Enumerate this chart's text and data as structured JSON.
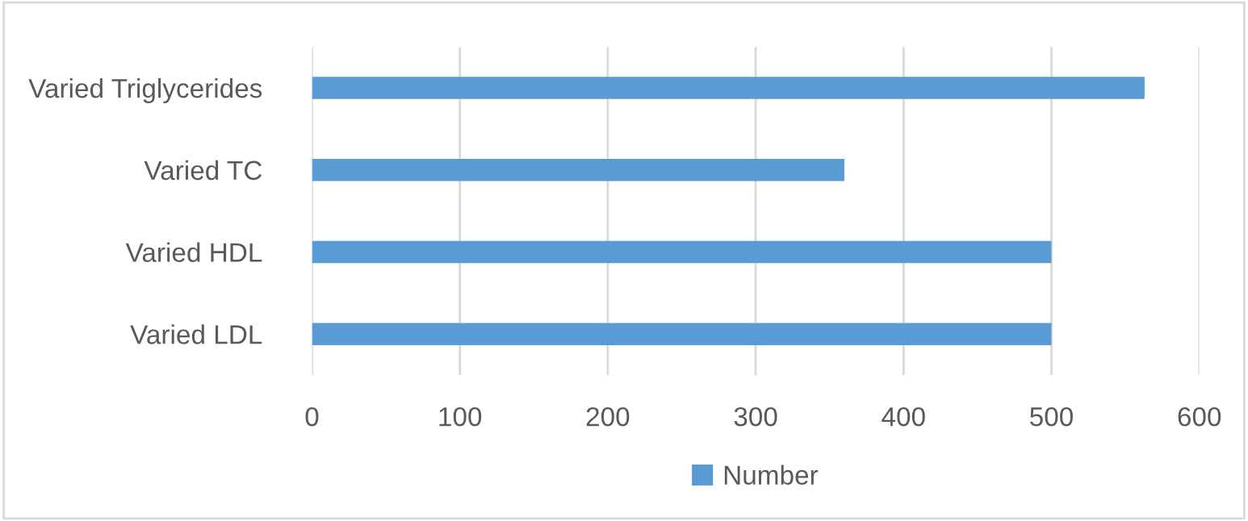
{
  "chart_data": {
    "type": "bar",
    "orientation": "horizontal",
    "categories": [
      "Varied Triglycerides",
      "Varied TC",
      "Varied HDL",
      "Varied LDL"
    ],
    "series": [
      {
        "name": "Number",
        "color": "#5b9bd5",
        "values": [
          563,
          360,
          500,
          500
        ]
      }
    ],
    "xlim": [
      0,
      600
    ],
    "xticks": [
      0,
      100,
      200,
      300,
      400,
      500,
      600
    ],
    "grid": "x",
    "legend": "bottom"
  }
}
